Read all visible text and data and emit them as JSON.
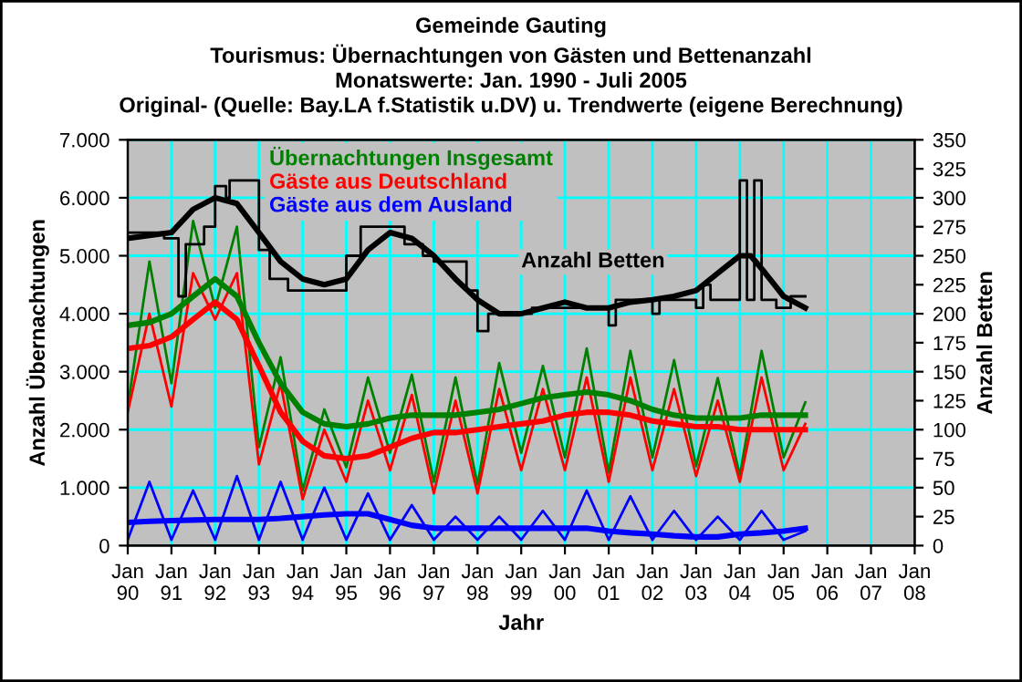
{
  "chart_data": {
    "type": "line",
    "title": "Gemeinde Gauting",
    "subtitle": "Tourismus: Übernachtungen von Gästen und Bettenanzahl\nMonatswerte: Jan. 1990 - Juli 2005\nOriginal- (Quelle: Bay.LA f.Statistik u.DV) u. Trendwerte (eigene Berechnung)",
    "xlabel": "Jahr",
    "ylabel": "Anzahl Übernachtungen",
    "y2label": "Anzahl Betten",
    "xlim": [
      "1990-01",
      "2008-01"
    ],
    "xticks": [
      {
        "value": "1990-01",
        "label": "Jan\n90"
      },
      {
        "value": "1991-01",
        "label": "Jan\n91"
      },
      {
        "value": "1992-01",
        "label": "Jan\n92"
      },
      {
        "value": "1993-01",
        "label": "Jan\n93"
      },
      {
        "value": "1994-01",
        "label": "Jan\n94"
      },
      {
        "value": "1995-01",
        "label": "Jan\n95"
      },
      {
        "value": "1996-01",
        "label": "Jan\n96"
      },
      {
        "value": "1997-01",
        "label": "Jan\n97"
      },
      {
        "value": "1998-01",
        "label": "Jan\n98"
      },
      {
        "value": "1999-01",
        "label": "Jan\n99"
      },
      {
        "value": "2000-01",
        "label": "Jan\n00"
      },
      {
        "value": "2001-01",
        "label": "Jan\n01"
      },
      {
        "value": "2002-01",
        "label": "Jan\n02"
      },
      {
        "value": "2003-01",
        "label": "Jan\n03"
      },
      {
        "value": "2004-01",
        "label": "Jan\n04"
      },
      {
        "value": "2005-01",
        "label": "Jan\n05"
      },
      {
        "value": "2006-01",
        "label": "Jan\n06"
      },
      {
        "value": "2007-01",
        "label": "Jan\n07"
      },
      {
        "value": "2008-01",
        "label": "Jan\n08"
      }
    ],
    "ylim": [
      0,
      7000
    ],
    "yticks": [
      0,
      {
        "value": 1000,
        "label": "1.000"
      },
      {
        "value": 2000,
        "label": "2.000"
      },
      {
        "value": 3000,
        "label": "3.000"
      },
      {
        "value": 4000,
        "label": "4.000"
      },
      {
        "value": 5000,
        "label": "5.000"
      },
      {
        "value": 6000,
        "label": "6.000"
      },
      {
        "value": 7000,
        "label": "7.000"
      }
    ],
    "y2lim": [
      0,
      350
    ],
    "y2ticks": [
      0,
      25,
      50,
      75,
      100,
      125,
      150,
      175,
      200,
      225,
      250,
      275,
      300,
      325,
      350
    ],
    "grid": true,
    "legend": "top",
    "marker": "none",
    "line_style": "solid",
    "x": [
      "1990-01",
      "1990-07",
      "1991-01",
      "1991-07",
      "1992-01",
      "1992-07",
      "1993-01",
      "1993-07",
      "1994-01",
      "1994-07",
      "1995-01",
      "1995-07",
      "1996-01",
      "1996-07",
      "1997-01",
      "1997-07",
      "1998-01",
      "1998-07",
      "1999-01",
      "1999-07",
      "2000-01",
      "2000-07",
      "2001-01",
      "2001-07",
      "2002-01",
      "2002-07",
      "2003-01",
      "2003-07",
      "2004-01",
      "2004-07",
      "2005-01",
      "2005-07"
    ],
    "series": [
      {
        "name": "Übernachtungen Insgesamt",
        "color": "#008000",
        "values": [
          2400,
          4900,
          2800,
          5600,
          4100,
          5500,
          1700,
          3250,
          950,
          2350,
          1350,
          2900,
          1600,
          2950,
          1100,
          2900,
          1050,
          3150,
          1600,
          3100,
          1520,
          3400,
          1260,
          3360,
          1520,
          3200,
          1370,
          2890,
          1210,
          3360,
          1520,
          2470
        ]
      },
      {
        "name": "Gäste aus Deutschland",
        "color": "#ff0000",
        "values": [
          2300,
          4000,
          2400,
          4700,
          3900,
          4700,
          1400,
          2800,
          800,
          2000,
          1100,
          2500,
          1300,
          2600,
          900,
          2500,
          900,
          2700,
          1300,
          2700,
          1300,
          2900,
          1100,
          2900,
          1300,
          2700,
          1200,
          2500,
          1100,
          2900,
          1300,
          2100
        ]
      },
      {
        "name": "Gäste aus dem Ausland",
        "color": "#0000ff",
        "values": [
          100,
          1100,
          100,
          950,
          100,
          1200,
          100,
          1100,
          100,
          1000,
          100,
          900,
          100,
          700,
          100,
          500,
          100,
          500,
          100,
          600,
          100,
          950,
          100,
          850,
          100,
          600,
          100,
          500,
          100,
          600,
          100,
          250
        ]
      },
      {
        "color": "#008000",
        "values": [
          3800,
          3850,
          4000,
          4300,
          4600,
          4300,
          3500,
          2800,
          2300,
          2100,
          2050,
          2100,
          2200,
          2250,
          2250,
          2250,
          2300,
          2350,
          2450,
          2550,
          2600,
          2650,
          2600,
          2500,
          2350,
          2250,
          2200,
          2200,
          2200,
          2250,
          2250,
          2250
        ]
      },
      {
        "color": "#ff0000",
        "values": [
          3400,
          3450,
          3600,
          3900,
          4200,
          3900,
          3100,
          2300,
          1800,
          1550,
          1500,
          1550,
          1700,
          1850,
          1950,
          1950,
          2000,
          2050,
          2100,
          2150,
          2250,
          2300,
          2300,
          2250,
          2150,
          2100,
          2050,
          2050,
          2000,
          2000,
          2000,
          2000
        ]
      },
      {
        "color": "#0000ff",
        "values": [
          400,
          420,
          430,
          440,
          450,
          450,
          450,
          470,
          500,
          530,
          550,
          550,
          450,
          350,
          300,
          300,
          300,
          300,
          300,
          300,
          300,
          300,
          250,
          220,
          200,
          170,
          150,
          150,
          200,
          220,
          250,
          300
        ]
      },
      {
        "name": "Anzahl Betten",
        "type": "step",
        "axis": "y2",
        "color": "#000000",
        "x": [
          "1990-01",
          "1990-11",
          "1991-03",
          "1991-05",
          "1991-10",
          "1992-01",
          "1992-04",
          "1992-05",
          "1993-01",
          "1993-04",
          "1993-09",
          "1994-08",
          "1995-01",
          "1995-05",
          "1996-01",
          "1996-05",
          "1996-10",
          "1997-01",
          "1997-10",
          "1998-01",
          "1998-04",
          "1999-01",
          "1999-04",
          "2001-01",
          "2001-03",
          "2002-01",
          "2002-03",
          "2003-01",
          "2003-03",
          "2003-05",
          "2004-01",
          "2004-03",
          "2004-05",
          "2004-07",
          "2004-11",
          "2005-03",
          "2005-07"
        ],
        "values": [
          270,
          265,
          215,
          260,
          275,
          310,
          300,
          315,
          255,
          230,
          220,
          220,
          250,
          275,
          275,
          260,
          250,
          245,
          220,
          185,
          200,
          200,
          205,
          190,
          212,
          200,
          212,
          205,
          225,
          212,
          315,
          212,
          315,
          212,
          205,
          215,
          215
        ]
      },
      {
        "type": "line",
        "axis": "y2",
        "color": "#000000",
        "x": [
          "1990-01",
          "1991-01",
          "1991-07",
          "1992-01",
          "1992-07",
          "1993-01",
          "1993-07",
          "1994-01",
          "1994-07",
          "1995-01",
          "1995-07",
          "1996-01",
          "1996-07",
          "1997-01",
          "1997-07",
          "1998-01",
          "1998-07",
          "1999-01",
          "1999-07",
          "2000-01",
          "2000-07",
          "2001-01",
          "2001-07",
          "2002-01",
          "2002-07",
          "2003-01",
          "2003-07",
          "2004-01",
          "2004-04",
          "2004-08",
          "2005-01",
          "2005-07"
        ],
        "values": [
          265,
          270,
          290,
          300,
          295,
          270,
          245,
          230,
          225,
          230,
          255,
          270,
          265,
          250,
          230,
          212,
          200,
          200,
          205,
          210,
          205,
          205,
          210,
          212,
          215,
          220,
          235,
          250,
          250,
          235,
          215,
          205
        ]
      }
    ]
  }
}
